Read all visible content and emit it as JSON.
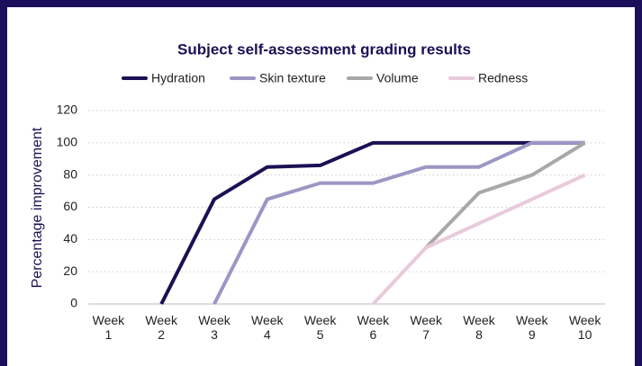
{
  "chart_data": {
    "type": "line",
    "title": "Subject self-assessment grading results",
    "y_label": "Percentage improvement",
    "categories": [
      "Week 1",
      "Week 2",
      "Week 3",
      "Week 4",
      "Week 5",
      "Week 6",
      "Week 7",
      "Week 8",
      "Week 9",
      "Week 10"
    ],
    "series": [
      {
        "name": "Hydration",
        "color": "#1b1054",
        "values": [
          null,
          0,
          65,
          85,
          86,
          100,
          100,
          100,
          100,
          100
        ]
      },
      {
        "name": "Skin texture",
        "color": "#9b97c4",
        "values": [
          null,
          null,
          0,
          65,
          75,
          75,
          85,
          85,
          100,
          100
        ]
      },
      {
        "name": "Volume",
        "color": "#a8a8a8",
        "values": [
          null,
          null,
          null,
          null,
          null,
          null,
          35,
          69,
          80,
          100
        ]
      },
      {
        "name": "Redness",
        "color": "#e8cadb",
        "values": [
          null,
          null,
          null,
          null,
          null,
          0,
          35,
          50,
          65,
          80
        ]
      }
    ],
    "ylim": [
      0,
      120
    ],
    "yticks": [
      0,
      20,
      40,
      60,
      80,
      100,
      120
    ],
    "grid": true,
    "legend": "top"
  }
}
